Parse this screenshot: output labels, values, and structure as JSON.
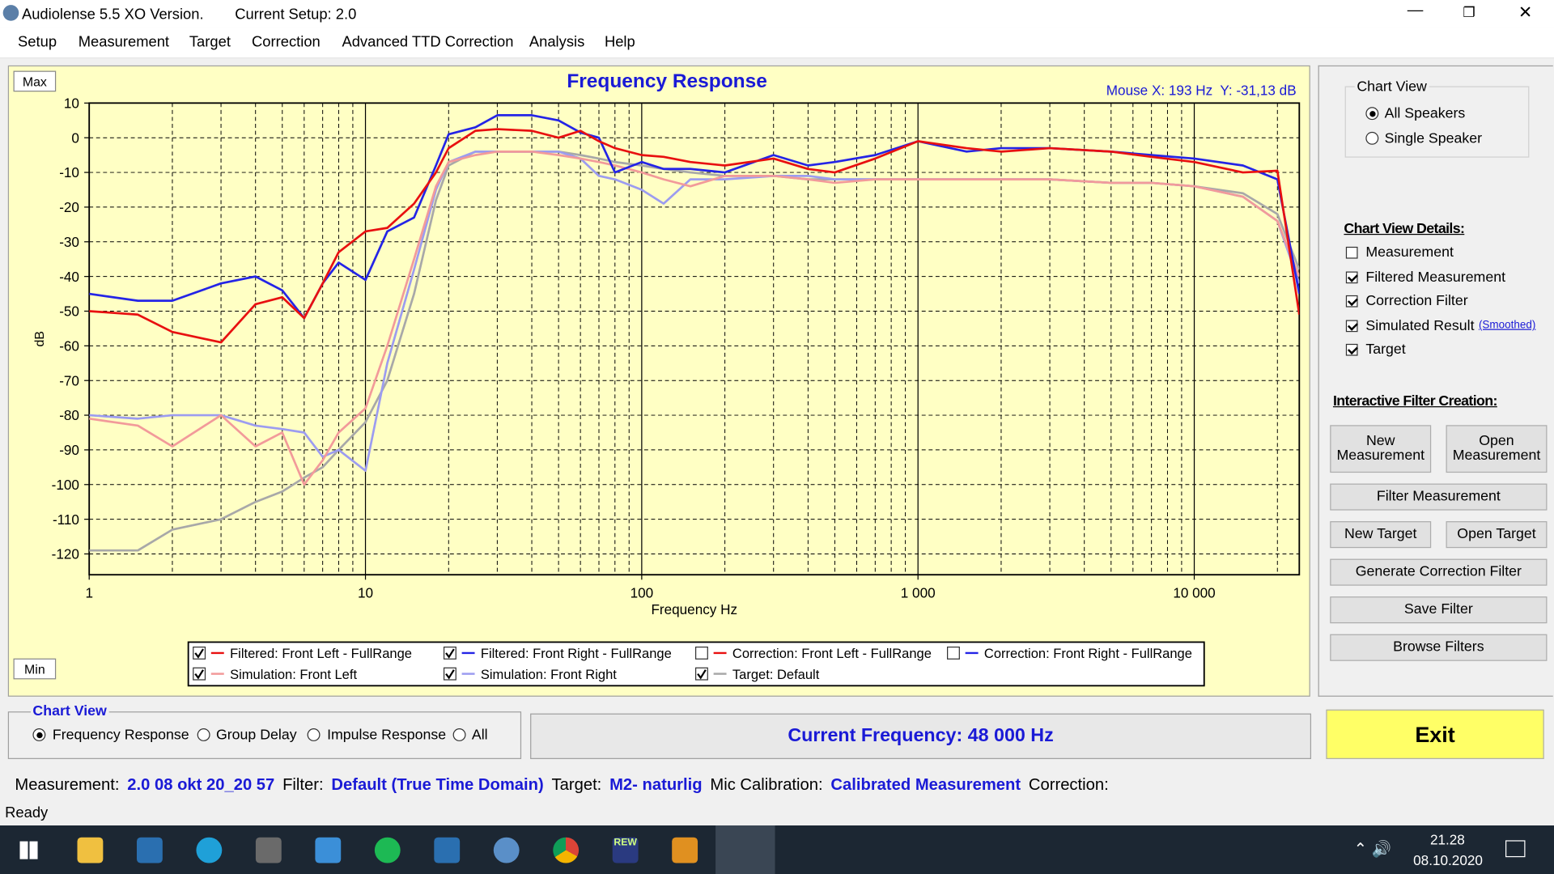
{
  "window": {
    "title": "Audiolense 5.5 XO Version.",
    "setup": "Current Setup: 2.0"
  },
  "menu": [
    "Setup",
    "Measurement",
    "Target",
    "Correction",
    "Advanced TTD Correction",
    "Analysis",
    "Help"
  ],
  "chart_data": {
    "type": "line",
    "title": "Frequency Response",
    "xlabel": "Frequency Hz",
    "ylabel": "dB",
    "mouse_readout": "Mouse X: 193 Hz  Y: -31,13 dB",
    "max_label": "Max",
    "min_label": "Min",
    "log_x": true,
    "grid": true,
    "xlim": [
      1,
      24000
    ],
    "ylim": [
      -126,
      10
    ],
    "xticks": [
      1,
      10,
      100,
      {
        "value": 1000,
        "label": "1 000"
      },
      {
        "value": 10000,
        "label": "10 000"
      }
    ],
    "yticks": [
      10,
      0,
      -10,
      -20,
      -30,
      -40,
      -50,
      -60,
      -70,
      -80,
      -90,
      -100,
      -110,
      -120
    ],
    "x": [
      1,
      1.5,
      2,
      3,
      4,
      5,
      6,
      7,
      8,
      10,
      12,
      15,
      18,
      20,
      25,
      30,
      40,
      50,
      60,
      70,
      80,
      100,
      120,
      150,
      200,
      300,
      400,
      500,
      700,
      1000,
      1500,
      2000,
      3000,
      5000,
      7000,
      10000,
      15000,
      20000,
      24000
    ],
    "series": [
      {
        "name": "Filtered: Front Left - FullRange",
        "color": "#e81010",
        "checked": true,
        "values": [
          -50,
          -51,
          -56,
          -59,
          -48,
          -46,
          -52,
          -42,
          -33,
          -27,
          -26,
          -19,
          -10,
          -3,
          2,
          2.5,
          2,
          0,
          2,
          -1,
          -3,
          -5,
          -5.5,
          -7,
          -8,
          -6,
          -9,
          -10,
          -6,
          -1,
          -3,
          -4,
          -3,
          -4,
          -5.5,
          -7,
          -10,
          -9.5,
          -51
        ]
      },
      {
        "name": "Filtered: Front Right - FullRange",
        "color": "#2424e6",
        "checked": true,
        "values": [
          -45,
          -47,
          -47,
          -42,
          -40,
          -44,
          -52,
          -42,
          -36,
          -41,
          -27,
          -23,
          -8,
          1,
          3,
          6.5,
          6.5,
          5,
          1.5,
          0,
          -10,
          -7,
          -9,
          -9,
          -10,
          -5,
          -8,
          -7,
          -5,
          -1,
          -4,
          -3,
          -3,
          -4,
          -5,
          -6,
          -8,
          -12,
          -45
        ]
      },
      {
        "name": "Simulation: Front Left",
        "color": "#f29a9a",
        "checked": true,
        "values": [
          -81,
          -83,
          -89,
          -80,
          -89,
          -85,
          -100,
          -93,
          -85,
          -78,
          -60,
          -35,
          -14,
          -7,
          -5,
          -4,
          -4,
          -5,
          -6,
          -7,
          -8,
          -10,
          -12,
          -14,
          -11,
          -11,
          -12,
          -13,
          -12,
          -12,
          -12,
          -12,
          -12,
          -13,
          -13,
          -14,
          -17,
          -24,
          -40
        ]
      },
      {
        "name": "Simulation: Front Right",
        "color": "#9c9cf0",
        "checked": true,
        "values": [
          -80,
          -81,
          -80,
          -80,
          -83,
          -84,
          -85,
          -92,
          -90,
          -96,
          -65,
          -38,
          -15,
          -7,
          -4,
          -4,
          -4,
          -4,
          -6,
          -11,
          -12,
          -15,
          -19,
          -12,
          -12,
          -11,
          -11,
          -12,
          -12,
          -12,
          -12,
          -12,
          -12,
          -13,
          -13,
          -14,
          -17,
          -24,
          -42
        ]
      },
      {
        "name": "Target: Default",
        "color": "#a8a8a8",
        "checked": true,
        "values": [
          -119,
          -119,
          -113,
          -110,
          -105,
          -102,
          -98,
          -95,
          -90,
          -82,
          -70,
          -45,
          -18,
          -8,
          -4,
          -4,
          -4,
          -4,
          -5,
          -6,
          -7,
          -8,
          -9,
          -10,
          -11,
          -11,
          -12,
          -12,
          -12,
          -12,
          -12,
          -12,
          -12,
          -13,
          -13,
          -14,
          -16,
          -22,
          -38
        ]
      }
    ],
    "hidden_series": [
      {
        "name": "Correction: Front Left - FullRange",
        "color": "#e81010",
        "checked": false
      },
      {
        "name": "Correction: Front Right - FullRange",
        "color": "#2424e6",
        "checked": false
      }
    ]
  },
  "side_panel": {
    "chart_view": {
      "title": "Chart View",
      "options": [
        "All Speakers",
        "Single Speaker"
      ],
      "selected": 0
    },
    "details": {
      "title": "Chart View Details:",
      "smoothed": "(Smoothed)",
      "items": [
        {
          "label": "Measurement",
          "checked": false
        },
        {
          "label": "Filtered Measurement",
          "checked": true
        },
        {
          "label": "Correction Filter",
          "checked": true
        },
        {
          "label": "Simulated Result",
          "checked": true
        },
        {
          "label": "Target",
          "checked": true
        }
      ]
    },
    "filter_creation": {
      "title": "Interactive Filter Creation:",
      "buttons": [
        "New Measurement",
        "Open Measurement",
        "Filter Measurement",
        "New Target",
        "Open Target",
        "Generate Correction Filter",
        "Save Filter",
        "Browse Filters"
      ]
    }
  },
  "bottom": {
    "title": "Chart View",
    "options": [
      "Frequency Response",
      "Group Delay",
      "Impulse Response",
      "All"
    ],
    "selected": 0,
    "current_frequency": "Current Frequency: 48 000 Hz",
    "exit": "Exit"
  },
  "status": {
    "items": [
      {
        "label": "Measurement:",
        "value": "2.0 08 okt 20_20 57"
      },
      {
        "label": "Filter:",
        "value": "Default (True Time Domain)"
      },
      {
        "label": "Target:",
        "value": "M2- naturlig"
      },
      {
        "label": "Mic Calibration:",
        "value": "Calibrated Measurement"
      },
      {
        "label": "Correction:"
      }
    ],
    "ready": "Ready"
  },
  "taskbar": {
    "rew": "REW",
    "time": "21.28",
    "date": "08.10.2020"
  }
}
